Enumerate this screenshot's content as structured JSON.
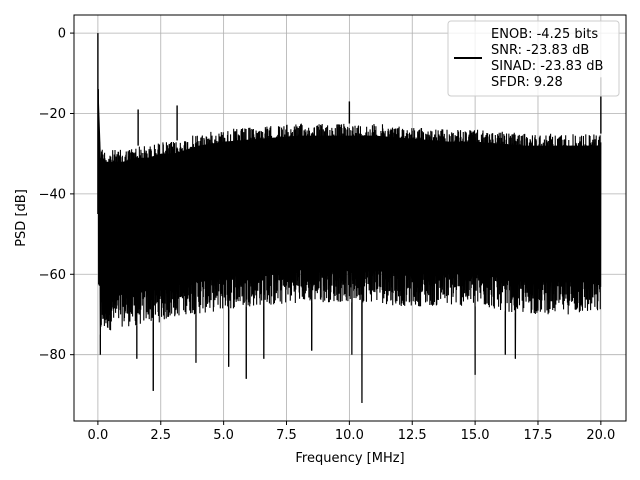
{
  "chart_data": {
    "type": "line",
    "title": "",
    "xlabel": "Frequency [MHz]",
    "ylabel": "PSD [dB]",
    "xlim": [
      -0.95,
      21.0
    ],
    "ylim": [
      -96.5,
      4.5
    ],
    "xticks": [
      0.0,
      2.5,
      5.0,
      7.5,
      10.0,
      12.5,
      15.0,
      17.5,
      20.0
    ],
    "xtick_labels": [
      "0.0",
      "2.5",
      "5.0",
      "7.5",
      "10.0",
      "12.5",
      "15.0",
      "17.5",
      "20.0"
    ],
    "yticks": [
      0,
      -20,
      -40,
      -60,
      -80
    ],
    "ytick_labels": [
      "0",
      "−20",
      "−40",
      "−60",
      "−80"
    ],
    "grid": true,
    "legend_position": "top-right",
    "series": [
      {
        "color": "#000000",
        "upper_envelope": {
          "x": [
            0.0,
            0.05,
            0.1,
            0.3,
            0.5,
            1.0,
            1.5,
            2.0,
            2.5,
            3.0,
            3.5,
            4.0,
            5.0,
            6.0,
            7.0,
            8.0,
            9.0,
            10.0,
            11.0,
            12.0,
            13.0,
            14.0,
            15.0,
            16.0,
            17.0,
            18.0,
            19.0,
            20.0
          ],
          "y": [
            0,
            -25,
            -28,
            -29,
            -29,
            -29,
            -28,
            -28,
            -27,
            -27,
            -26,
            -25,
            -24,
            -23.5,
            -23,
            -22.5,
            -22.5,
            -22.5,
            -22.5,
            -23,
            -23.5,
            -24,
            -24,
            -24.5,
            -25,
            -25,
            -25,
            -25
          ]
        },
        "lower_envelope": {
          "x": [
            0.0,
            0.1,
            0.5,
            1.0,
            1.5,
            2.0,
            2.5,
            3.0,
            3.5,
            4.0,
            5.0,
            6.0,
            7.0,
            8.0,
            9.0,
            10.0,
            11.0,
            12.0,
            13.0,
            14.0,
            15.0,
            16.0,
            17.0,
            18.0,
            19.0,
            20.0
          ],
          "y": [
            -62,
            -75,
            -74,
            -73,
            -73,
            -72,
            -72,
            -71,
            -70,
            -70,
            -69,
            -68,
            -68,
            -67,
            -67,
            -67,
            -67,
            -68,
            -68,
            -68,
            -68,
            -69,
            -70,
            -70,
            -70,
            -70
          ]
        },
        "spikes": [
          {
            "x": 0.0,
            "y": 0
          },
          {
            "x": 1.6,
            "y": -19
          },
          {
            "x": 3.15,
            "y": -18
          },
          {
            "x": 10.0,
            "y": -17
          },
          {
            "x": 20.0,
            "y": -11
          }
        ],
        "dips": [
          {
            "x": 0.1,
            "y": -80
          },
          {
            "x": 1.55,
            "y": -81
          },
          {
            "x": 2.2,
            "y": -89
          },
          {
            "x": 3.9,
            "y": -82
          },
          {
            "x": 5.2,
            "y": -83
          },
          {
            "x": 5.9,
            "y": -86
          },
          {
            "x": 6.6,
            "y": -81
          },
          {
            "x": 8.5,
            "y": -79
          },
          {
            "x": 10.5,
            "y": -92
          },
          {
            "x": 10.1,
            "y": -80
          },
          {
            "x": 15.0,
            "y": -85
          },
          {
            "x": 16.2,
            "y": -80
          },
          {
            "x": 16.6,
            "y": -81
          }
        ]
      }
    ],
    "legend": {
      "lines": [
        "ENOB: -4.25 bits",
        "SNR: -23.83 dB",
        "SINAD: -23.83 dB",
        "SFDR: 9.28"
      ]
    }
  }
}
